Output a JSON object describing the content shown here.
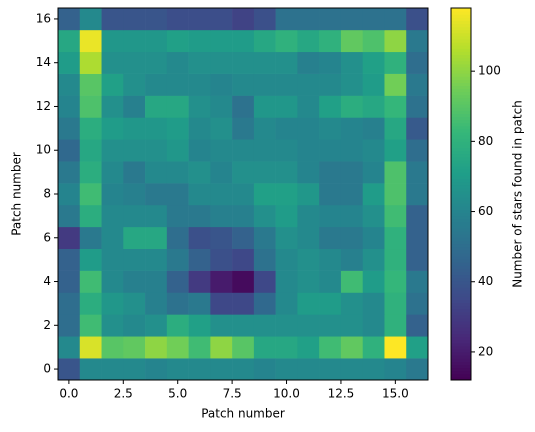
{
  "chart_data": {
    "type": "heatmap",
    "xlabel": "Patch number",
    "ylabel": "Patch number",
    "colorbar_label": "Number of stars found in patch",
    "colormap": "viridis",
    "xlim": [
      -0.5,
      16.5
    ],
    "ylim": [
      -0.5,
      16.5
    ],
    "xticks": [
      {
        "value": 0,
        "label": "0.0"
      },
      {
        "value": 2.5,
        "label": "2.5"
      },
      {
        "value": 5,
        "label": "5.0"
      },
      {
        "value": 7.5,
        "label": "7.5"
      },
      {
        "value": 10,
        "label": "10.0"
      },
      {
        "value": 12.5,
        "label": "12.5"
      },
      {
        "value": 15,
        "label": "15.0"
      }
    ],
    "yticks": [
      0,
      2,
      4,
      6,
      8,
      10,
      12,
      14,
      16
    ],
    "clim": [
      12,
      118
    ],
    "cticks": [
      20,
      40,
      60,
      80,
      100
    ],
    "values": [
      [
        40,
        62,
        62,
        62,
        60,
        62,
        62,
        62,
        62,
        60,
        62,
        62,
        62,
        62,
        62,
        60,
        55
      ],
      [
        62,
        112,
        90,
        92,
        100,
        95,
        85,
        100,
        90,
        75,
        75,
        72,
        85,
        92,
        80,
        118,
        72
      ],
      [
        50,
        85,
        65,
        62,
        65,
        78,
        72,
        65,
        65,
        65,
        65,
        65,
        65,
        65,
        62,
        80,
        45
      ],
      [
        50,
        78,
        68,
        65,
        58,
        52,
        55,
        35,
        35,
        48,
        62,
        70,
        70,
        65,
        62,
        80,
        52
      ],
      [
        45,
        85,
        62,
        58,
        58,
        45,
        30,
        20,
        15,
        35,
        62,
        65,
        62,
        85,
        70,
        82,
        55
      ],
      [
        45,
        70,
        62,
        62,
        62,
        55,
        45,
        38,
        35,
        52,
        62,
        65,
        62,
        58,
        65,
        80,
        45
      ],
      [
        30,
        55,
        62,
        75,
        75,
        50,
        38,
        40,
        45,
        55,
        65,
        62,
        55,
        55,
        60,
        80,
        45
      ],
      [
        55,
        78,
        62,
        62,
        62,
        55,
        55,
        58,
        58,
        65,
        70,
        62,
        60,
        60,
        65,
        85,
        45
      ],
      [
        60,
        85,
        60,
        58,
        55,
        55,
        62,
        62,
        62,
        72,
        72,
        68,
        55,
        55,
        70,
        88,
        55
      ],
      [
        55,
        78,
        62,
        55,
        62,
        62,
        65,
        60,
        65,
        65,
        65,
        60,
        55,
        55,
        60,
        88,
        55
      ],
      [
        48,
        75,
        65,
        65,
        65,
        68,
        60,
        62,
        62,
        62,
        62,
        60,
        60,
        60,
        62,
        72,
        50
      ],
      [
        55,
        78,
        70,
        68,
        68,
        70,
        62,
        65,
        55,
        62,
        60,
        60,
        62,
        60,
        58,
        75,
        42
      ],
      [
        60,
        88,
        65,
        58,
        75,
        75,
        65,
        62,
        52,
        68,
        68,
        62,
        72,
        78,
        75,
        82,
        52
      ],
      [
        62,
        90,
        72,
        65,
        62,
        62,
        62,
        60,
        62,
        62,
        62,
        62,
        62,
        65,
        70,
        95,
        55
      ],
      [
        70,
        105,
        65,
        65,
        65,
        62,
        65,
        65,
        65,
        65,
        65,
        58,
        60,
        65,
        72,
        80,
        50
      ],
      [
        75,
        115,
        68,
        68,
        68,
        72,
        70,
        70,
        70,
        75,
        80,
        75,
        80,
        92,
        88,
        100,
        55
      ],
      [
        45,
        62,
        40,
        40,
        40,
        37,
        37,
        37,
        33,
        38,
        52,
        52,
        52,
        52,
        52,
        52,
        38
      ]
    ]
  }
}
